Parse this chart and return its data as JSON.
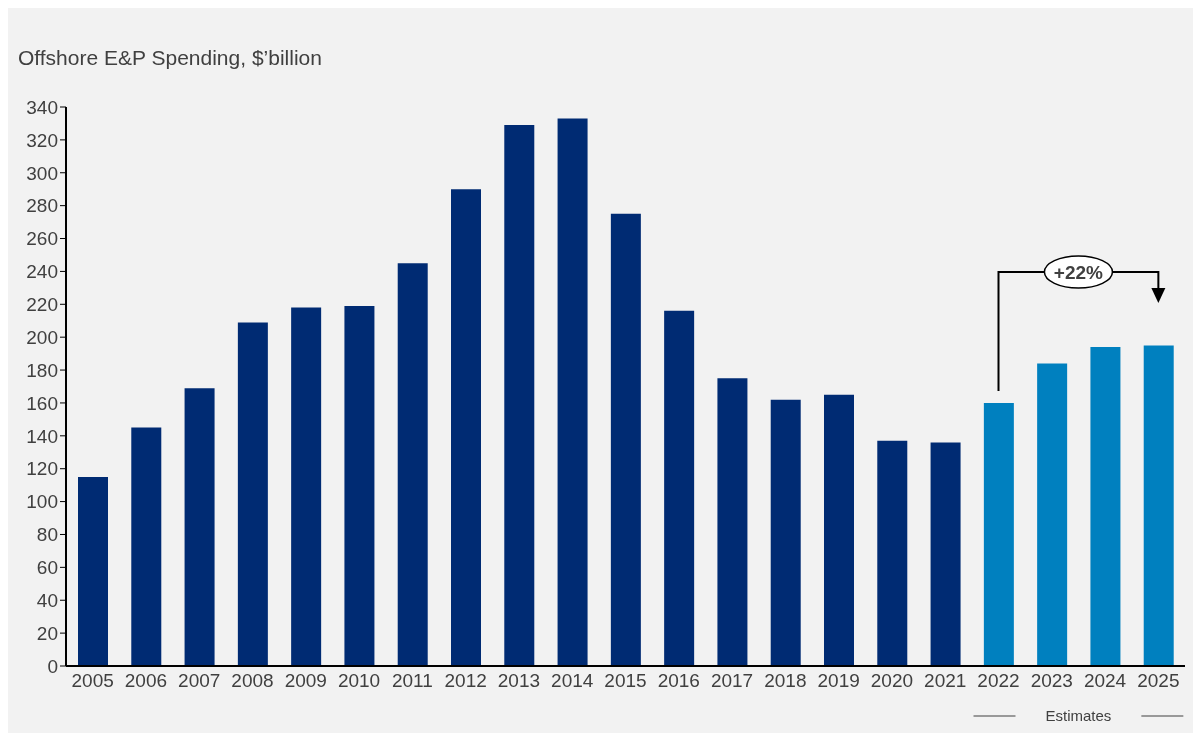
{
  "chart_data": {
    "type": "bar",
    "title": "Offshore E&P Spending, $’billion",
    "categories": [
      "2005",
      "2006",
      "2007",
      "2008",
      "2009",
      "2010",
      "2011",
      "2012",
      "2013",
      "2014",
      "2015",
      "2016",
      "2017",
      "2018",
      "2019",
      "2020",
      "2021",
      "2022",
      "2023",
      "2024",
      "2025"
    ],
    "values": [
      115,
      145,
      169,
      209,
      218,
      219,
      245,
      290,
      329,
      333,
      275,
      216,
      175,
      162,
      165,
      137,
      136,
      160,
      184,
      194,
      195
    ],
    "colors": [
      "#002b73",
      "#002b73",
      "#002b73",
      "#002b73",
      "#002b73",
      "#002b73",
      "#002b73",
      "#002b73",
      "#002b73",
      "#002b73",
      "#002b73",
      "#002b73",
      "#002b73",
      "#002b73",
      "#002b73",
      "#002b73",
      "#002b73",
      "#0080bf",
      "#0080bf",
      "#0080bf",
      "#0080bf"
    ],
    "ylim": [
      0,
      340
    ],
    "yticks": [
      0,
      20,
      40,
      60,
      80,
      100,
      120,
      140,
      160,
      180,
      200,
      220,
      240,
      260,
      280,
      300,
      320,
      340
    ],
    "annotations": [
      "+22%",
      "Estimates"
    ]
  }
}
